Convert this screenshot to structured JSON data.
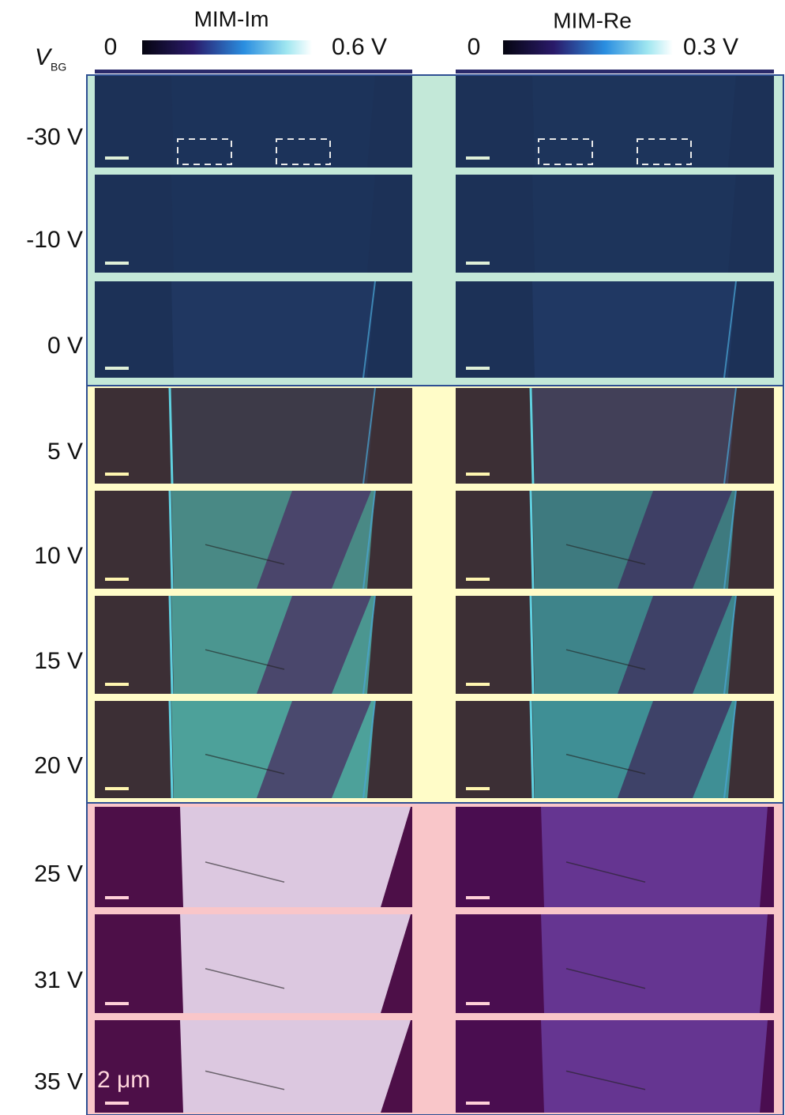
{
  "colorbars": [
    {
      "title": "MIM-Im",
      "min": "0",
      "max": "0.6 V"
    },
    {
      "title": "MIM-Re",
      "min": "0",
      "max": "0.3 V"
    }
  ],
  "axis_label": {
    "text": "V",
    "subscript": "BG"
  },
  "rows": [
    "-30 V",
    "-10 V",
    "0 V",
    "5 V",
    "10 V",
    "15 V",
    "20 V",
    "25 V",
    "31 V",
    "35 V"
  ],
  "scale_bar": "2 μm"
}
